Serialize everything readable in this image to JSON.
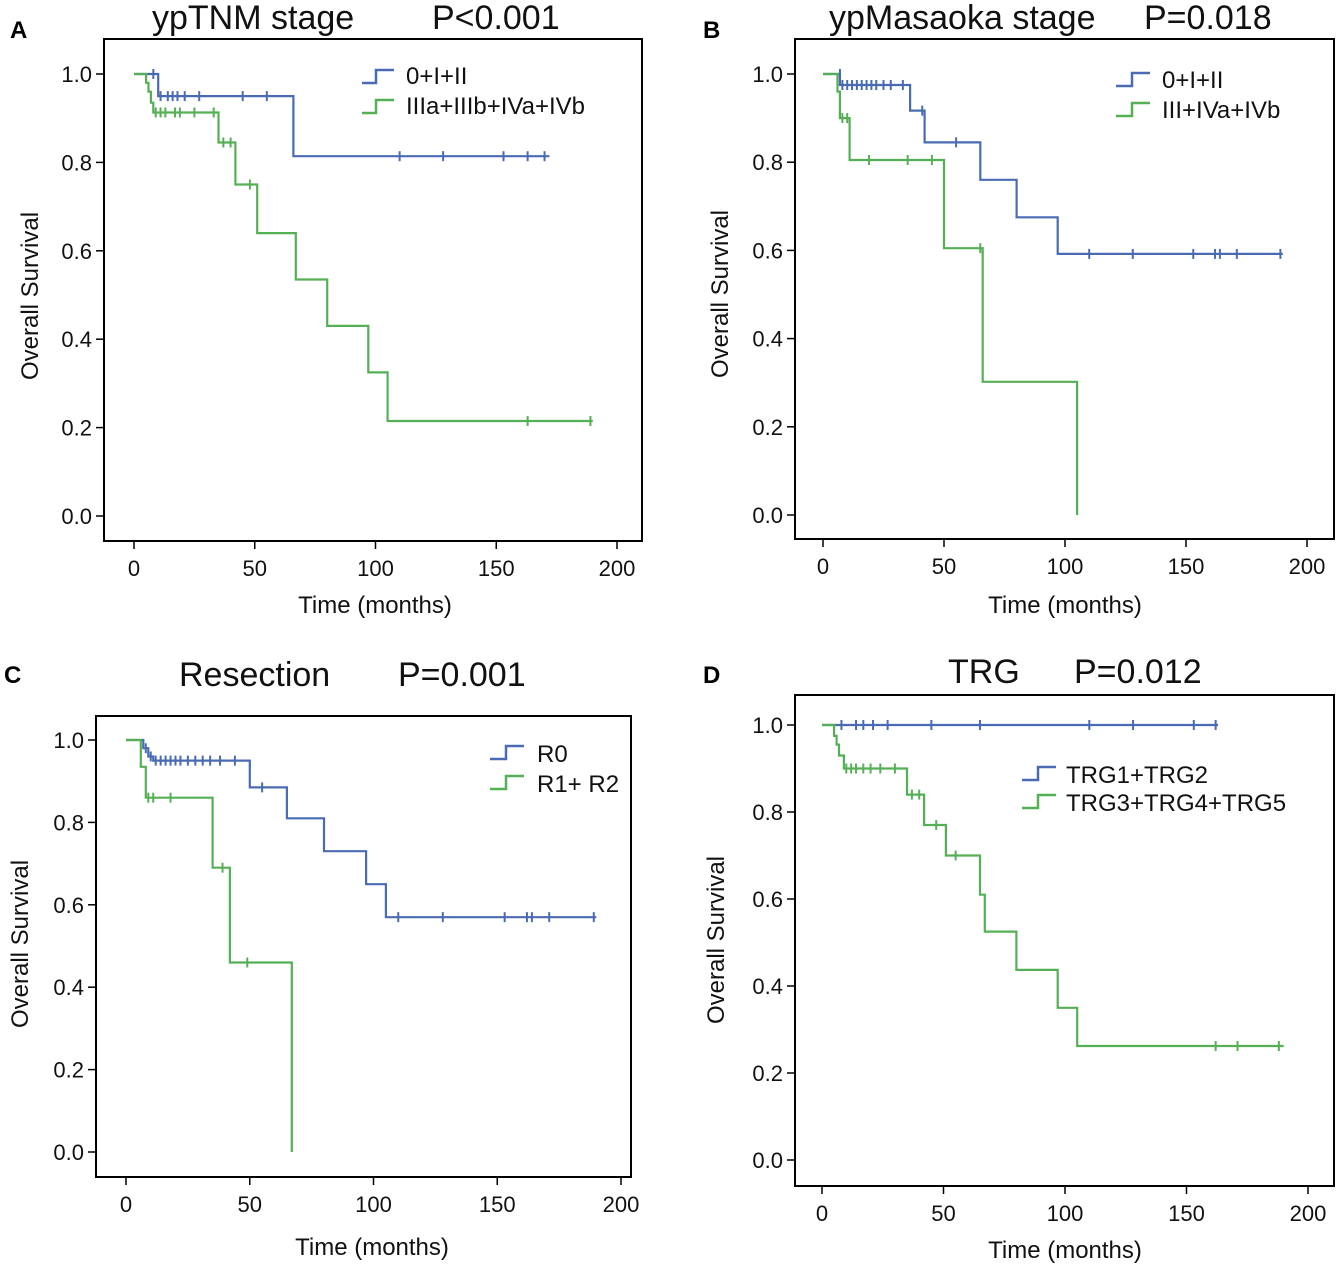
{
  "figure": {
    "panels": [
      "A",
      "B",
      "C",
      "D"
    ]
  },
  "chart_data": [
    {
      "panel_label": "A",
      "type": "line",
      "subtype": "kaplan-meier",
      "title": "ypTNM stage",
      "p_value": "P<0.001",
      "xlabel": "Time (months)",
      "ylabel": "Overall Survival",
      "xlim": [
        -5,
        210
      ],
      "ylim": [
        -0.06,
        1.08
      ],
      "xticks": [
        0,
        50,
        100,
        150,
        200
      ],
      "xtick_labels": [
        "0",
        "50",
        "100",
        "150",
        "200"
      ],
      "yticks": [
        0.0,
        0.2,
        0.4,
        0.6,
        0.8,
        1.0
      ],
      "ytick_labels": [
        "0.0",
        "0.2",
        "0.4",
        "0.6",
        "0.8",
        "1.0"
      ],
      "grid": false,
      "legend_position": "top-right",
      "series": [
        {
          "name": "0+I+II",
          "color": "#4a6bb4",
          "steps": [
            [
              0,
              1.0
            ],
            [
              10,
              1.0
            ],
            [
              10,
              0.95
            ],
            [
              66,
              0.95
            ],
            [
              66,
              0.814
            ],
            [
              172,
              0.814
            ]
          ],
          "censored": [
            [
              8,
              1.0
            ],
            [
              11,
              0.95
            ],
            [
              14,
              0.95
            ],
            [
              16,
              0.95
            ],
            [
              18,
              0.95
            ],
            [
              21,
              0.95
            ],
            [
              27,
              0.95
            ],
            [
              45,
              0.95
            ],
            [
              55,
              0.95
            ],
            [
              110,
              0.814
            ],
            [
              128,
              0.814
            ],
            [
              153,
              0.814
            ],
            [
              163,
              0.814
            ],
            [
              170,
              0.814
            ]
          ]
        },
        {
          "name": "IIIa+IIIb+IVa+IVb",
          "color": "#55b055",
          "steps": [
            [
              0,
              1.0
            ],
            [
              5,
              1.0
            ],
            [
              5,
              0.98
            ],
            [
              6,
              0.98
            ],
            [
              6,
              0.96
            ],
            [
              7,
              0.96
            ],
            [
              7,
              0.935
            ],
            [
              8,
              0.935
            ],
            [
              8,
              0.913
            ],
            [
              35,
              0.913
            ],
            [
              35,
              0.845
            ],
            [
              42,
              0.845
            ],
            [
              42,
              0.75
            ],
            [
              51,
              0.75
            ],
            [
              51,
              0.64
            ],
            [
              67,
              0.64
            ],
            [
              67,
              0.535
            ],
            [
              80,
              0.535
            ],
            [
              80,
              0.43
            ],
            [
              97,
              0.43
            ],
            [
              97,
              0.325
            ],
            [
              105,
              0.325
            ],
            [
              105,
              0.215
            ],
            [
              190,
              0.215
            ]
          ],
          "censored": [
            [
              9,
              0.913
            ],
            [
              11,
              0.913
            ],
            [
              13,
              0.913
            ],
            [
              17,
              0.913
            ],
            [
              19,
              0.913
            ],
            [
              25,
              0.913
            ],
            [
              33,
              0.913
            ],
            [
              37,
              0.845
            ],
            [
              40,
              0.845
            ],
            [
              48,
              0.75
            ],
            [
              163,
              0.215
            ],
            [
              189,
              0.215
            ]
          ]
        }
      ]
    },
    {
      "panel_label": "B",
      "type": "line",
      "subtype": "kaplan-meier",
      "title": "ypMasaoka stage",
      "p_value": "P=0.018",
      "xlabel": "Time (months)",
      "ylabel": "Overall Survival",
      "xlim": [
        -5,
        210
      ],
      "ylim": [
        -0.06,
        1.08
      ],
      "xticks": [
        0,
        50,
        100,
        150,
        200
      ],
      "xtick_labels": [
        "0",
        "50",
        "100",
        "150",
        "200"
      ],
      "yticks": [
        0.0,
        0.2,
        0.4,
        0.6,
        0.8,
        1.0
      ],
      "ytick_labels": [
        "0.0",
        "0.2",
        "0.4",
        "0.6",
        "0.8",
        "1.0"
      ],
      "grid": false,
      "legend_position": "top-right",
      "series": [
        {
          "name": "0+I+II",
          "color": "#4a6bb4",
          "steps": [
            [
              0,
              1.0
            ],
            [
              7,
              1.0
            ],
            [
              7,
              0.975
            ],
            [
              36,
              0.975
            ],
            [
              36,
              0.917
            ],
            [
              42,
              0.917
            ],
            [
              42,
              0.845
            ],
            [
              65,
              0.845
            ],
            [
              65,
              0.76
            ],
            [
              80,
              0.76
            ],
            [
              80,
              0.675
            ],
            [
              97,
              0.675
            ],
            [
              97,
              0.592
            ],
            [
              190,
              0.592
            ]
          ],
          "censored": [
            [
              7,
              1.0
            ],
            [
              8,
              0.975
            ],
            [
              10,
              0.975
            ],
            [
              12,
              0.975
            ],
            [
              14,
              0.975
            ],
            [
              16,
              0.975
            ],
            [
              18,
              0.975
            ],
            [
              20,
              0.975
            ],
            [
              22,
              0.975
            ],
            [
              25,
              0.975
            ],
            [
              28,
              0.975
            ],
            [
              33,
              0.975
            ],
            [
              41,
              0.917
            ],
            [
              55,
              0.845
            ],
            [
              110,
              0.592
            ],
            [
              128,
              0.592
            ],
            [
              153,
              0.592
            ],
            [
              162,
              0.592
            ],
            [
              164,
              0.592
            ],
            [
              171,
              0.592
            ],
            [
              189,
              0.592
            ]
          ]
        },
        {
          "name": "III+IVa+IVb",
          "color": "#55b055",
          "steps": [
            [
              0,
              1.0
            ],
            [
              6,
              1.0
            ],
            [
              6,
              0.96
            ],
            [
              7,
              0.96
            ],
            [
              7,
              0.9
            ],
            [
              11,
              0.9
            ],
            [
              11,
              0.805
            ],
            [
              50,
              0.805
            ],
            [
              50,
              0.605
            ],
            [
              66,
              0.605
            ],
            [
              66,
              0.302
            ],
            [
              105,
              0.302
            ],
            [
              105,
              0.0
            ]
          ],
          "censored": [
            [
              8,
              0.9
            ],
            [
              10,
              0.9
            ],
            [
              19,
              0.805
            ],
            [
              35,
              0.805
            ],
            [
              45,
              0.805
            ],
            [
              65,
              0.605
            ]
          ]
        }
      ]
    },
    {
      "panel_label": "C",
      "type": "line",
      "subtype": "kaplan-meier",
      "title": "Resection",
      "p_value": "P=0.001",
      "xlabel": "Time (months)",
      "ylabel": "Overall Survival",
      "xlim": [
        -5,
        200
      ],
      "ylim": [
        -0.06,
        1.08
      ],
      "xticks": [
        0,
        50,
        100,
        150,
        200
      ],
      "xtick_labels": [
        "0",
        "50",
        "100",
        "150",
        "200"
      ],
      "yticks": [
        0.0,
        0.2,
        0.4,
        0.6,
        0.8,
        1.0
      ],
      "ytick_labels": [
        "0.0",
        "0.2",
        "0.4",
        "0.6",
        "0.8",
        "1.0"
      ],
      "grid": false,
      "legend_position": "top-right",
      "series": [
        {
          "name": "R0",
          "color": "#4a6bb4",
          "steps": [
            [
              0,
              1.0
            ],
            [
              7,
              1.0
            ],
            [
              7,
              0.98
            ],
            [
              9,
              0.98
            ],
            [
              9,
              0.96
            ],
            [
              11,
              0.96
            ],
            [
              11,
              0.95
            ],
            [
              50,
              0.95
            ],
            [
              50,
              0.885
            ],
            [
              65,
              0.885
            ],
            [
              65,
              0.81
            ],
            [
              80,
              0.81
            ],
            [
              80,
              0.73
            ],
            [
              97,
              0.73
            ],
            [
              97,
              0.65
            ],
            [
              105,
              0.65
            ],
            [
              105,
              0.57
            ],
            [
              190,
              0.57
            ]
          ],
          "censored": [
            [
              8,
              0.98
            ],
            [
              10,
              0.96
            ],
            [
              12,
              0.95
            ],
            [
              14,
              0.95
            ],
            [
              16,
              0.95
            ],
            [
              18,
              0.95
            ],
            [
              20,
              0.95
            ],
            [
              22,
              0.95
            ],
            [
              25,
              0.95
            ],
            [
              28,
              0.95
            ],
            [
              31,
              0.95
            ],
            [
              34,
              0.95
            ],
            [
              38,
              0.95
            ],
            [
              44,
              0.95
            ],
            [
              55,
              0.885
            ],
            [
              110,
              0.57
            ],
            [
              128,
              0.57
            ],
            [
              153,
              0.57
            ],
            [
              162,
              0.57
            ],
            [
              164,
              0.57
            ],
            [
              171,
              0.57
            ],
            [
              189,
              0.57
            ]
          ]
        },
        {
          "name": "R1+ R2",
          "color": "#55b055",
          "steps": [
            [
              0,
              1.0
            ],
            [
              6,
              1.0
            ],
            [
              6,
              0.935
            ],
            [
              8,
              0.935
            ],
            [
              8,
              0.86
            ],
            [
              35,
              0.86
            ],
            [
              35,
              0.69
            ],
            [
              42,
              0.69
            ],
            [
              42,
              0.46
            ],
            [
              67,
              0.46
            ],
            [
              67,
              0.0
            ]
          ],
          "censored": [
            [
              9,
              0.86
            ],
            [
              11,
              0.86
            ],
            [
              18,
              0.86
            ],
            [
              39,
              0.69
            ],
            [
              49,
              0.46
            ]
          ]
        }
      ]
    },
    {
      "panel_label": "D",
      "type": "line",
      "subtype": "kaplan-meier",
      "title": "TRG",
      "p_value": "P=0.012",
      "xlabel": "Time (months)",
      "ylabel": "Overall Survival",
      "xlim": [
        -5,
        210
      ],
      "ylim": [
        -0.06,
        1.08
      ],
      "xticks": [
        0,
        50,
        100,
        150,
        200
      ],
      "xtick_labels": [
        "0",
        "50",
        "100",
        "150",
        "200"
      ],
      "yticks": [
        0.0,
        0.2,
        0.4,
        0.6,
        0.8,
        1.0
      ],
      "ytick_labels": [
        "0.0",
        "0.2",
        "0.4",
        "0.6",
        "0.8",
        "1.0"
      ],
      "grid": false,
      "legend_position": "top-right",
      "series": [
        {
          "name": "TRG1+TRG2",
          "color": "#4a6bb4",
          "steps": [
            [
              0,
              1.0
            ],
            [
              163,
              1.0
            ]
          ],
          "censored": [
            [
              8,
              1.0
            ],
            [
              14,
              1.0
            ],
            [
              17,
              1.0
            ],
            [
              21,
              1.0
            ],
            [
              27,
              1.0
            ],
            [
              45,
              1.0
            ],
            [
              65,
              1.0
            ],
            [
              110,
              1.0
            ],
            [
              128,
              1.0
            ],
            [
              153,
              1.0
            ],
            [
              162,
              1.0
            ]
          ]
        },
        {
          "name": "TRG3+TRG4+TRG5",
          "color": "#55b055",
          "steps": [
            [
              0,
              1.0
            ],
            [
              5,
              1.0
            ],
            [
              5,
              0.975
            ],
            [
              6,
              0.975
            ],
            [
              6,
              0.955
            ],
            [
              7,
              0.955
            ],
            [
              7,
              0.93
            ],
            [
              9,
              0.93
            ],
            [
              9,
              0.9
            ],
            [
              35,
              0.9
            ],
            [
              35,
              0.84
            ],
            [
              42,
              0.84
            ],
            [
              42,
              0.77
            ],
            [
              51,
              0.77
            ],
            [
              51,
              0.7
            ],
            [
              65,
              0.7
            ],
            [
              65,
              0.61
            ],
            [
              67,
              0.61
            ],
            [
              67,
              0.525
            ],
            [
              80,
              0.525
            ],
            [
              80,
              0.437
            ],
            [
              97,
              0.437
            ],
            [
              97,
              0.35
            ],
            [
              105,
              0.35
            ],
            [
              105,
              0.262
            ],
            [
              190,
              0.262
            ]
          ],
          "censored": [
            [
              10,
              0.9
            ],
            [
              12,
              0.9
            ],
            [
              14,
              0.9
            ],
            [
              17,
              0.9
            ],
            [
              20,
              0.9
            ],
            [
              24,
              0.9
            ],
            [
              30,
              0.9
            ],
            [
              37,
              0.84
            ],
            [
              40,
              0.84
            ],
            [
              47,
              0.77
            ],
            [
              55,
              0.7
            ],
            [
              162,
              0.262
            ],
            [
              171,
              0.262
            ],
            [
              188,
              0.262
            ]
          ]
        }
      ]
    }
  ]
}
